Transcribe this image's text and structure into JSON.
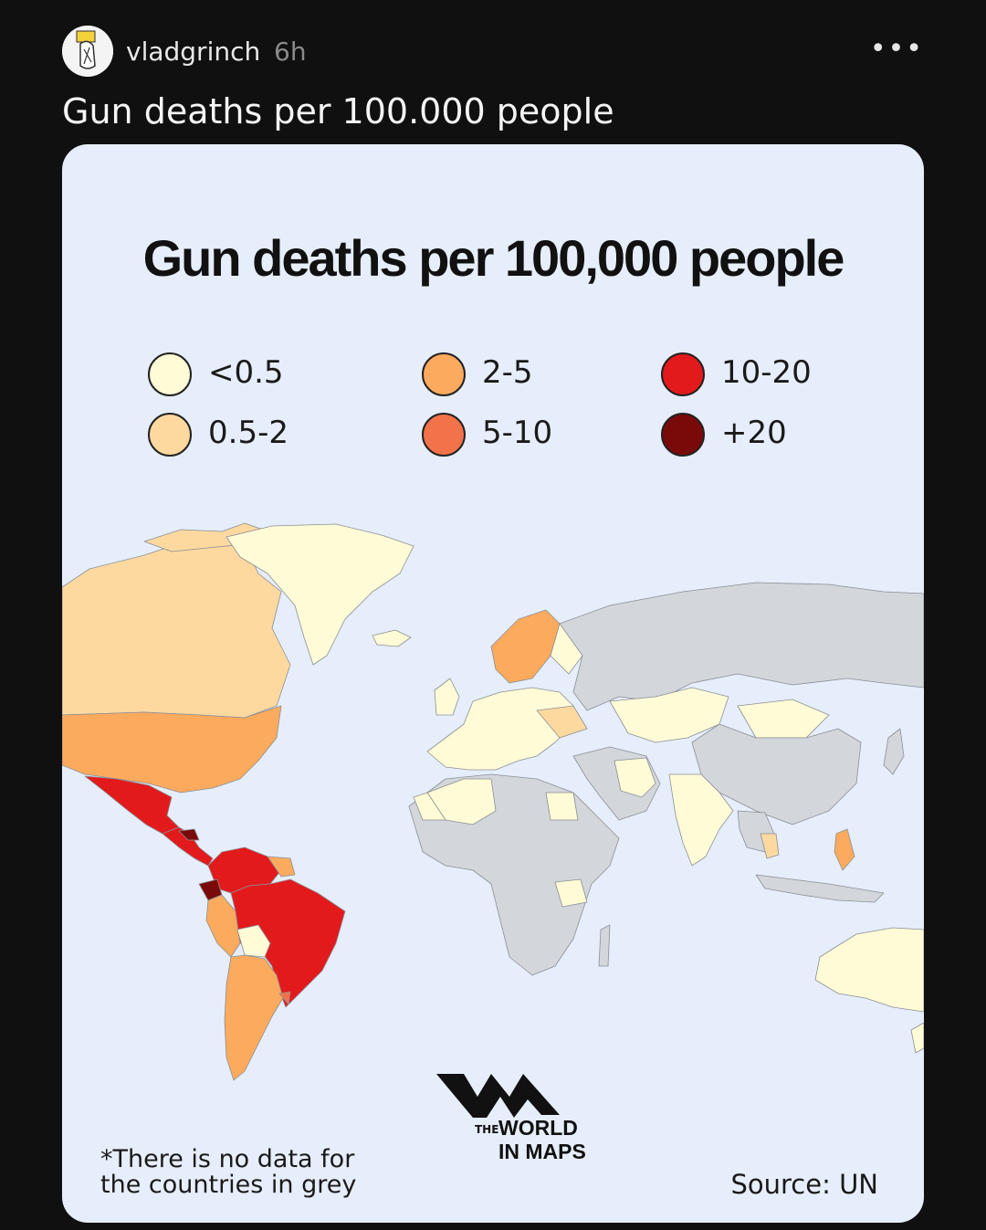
{
  "post": {
    "username": "vladgrinch",
    "time": "6h",
    "more_label": "•••",
    "caption": "Gun deaths per 100.000 people"
  },
  "infographic": {
    "title": "Gun deaths per 100,000 people",
    "legend": [
      {
        "label": "<0.5",
        "color": "#fffbd6"
      },
      {
        "label": "0.5-2",
        "color": "#fdd9a0"
      },
      {
        "label": "2-5",
        "color": "#fbaa5e"
      },
      {
        "label": "5-10",
        "color": "#f2734a"
      },
      {
        "label": "10-20",
        "color": "#e31a1c"
      },
      {
        "label": "+20",
        "color": "#7a0a0a"
      }
    ],
    "no_data_color": "#d3d6db",
    "logo": {
      "the": "THE",
      "world": "WORLD",
      "in_maps": "IN MAPS"
    },
    "note": "*There is no data for the countries in grey",
    "source": "Source: UN"
  }
}
